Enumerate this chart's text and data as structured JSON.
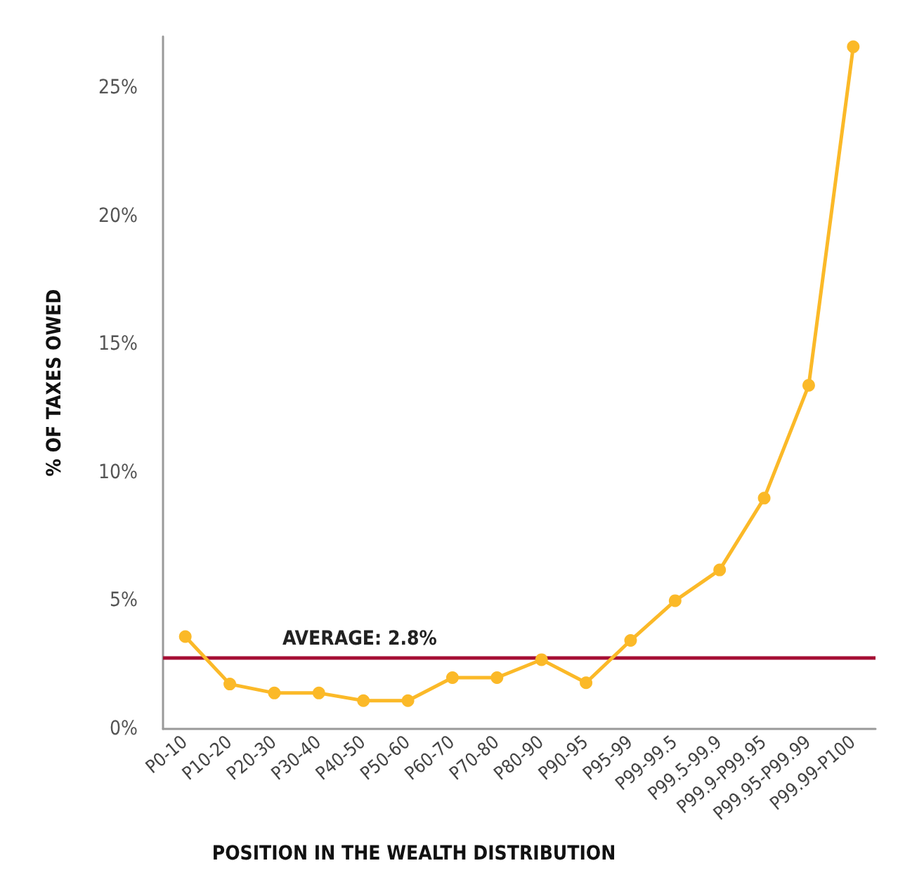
{
  "chart_data": {
    "type": "line",
    "xlabel": "POSITION IN THE WEALTH DISTRIBUTION",
    "ylabel": "% OF TAXES OWED",
    "categories": [
      "P0-10",
      "P10-20",
      "P20-30",
      "P30-40",
      "P40-50",
      "P50-60",
      "P60-70",
      "P70-80",
      "P80-90",
      "P90-95",
      "P95-99",
      "P99-99.5",
      "P99.5-99.9",
      "P99.9-P99.95",
      "P99.95-P99.99",
      "P99.99-P100"
    ],
    "series": [
      {
        "color": "#fbb928",
        "values": [
          3.6,
          1.75,
          1.4,
          1.4,
          1.1,
          1.1,
          2.0,
          2.0,
          2.7,
          1.8,
          3.45,
          5.0,
          6.2,
          9.0,
          13.4,
          26.6
        ]
      }
    ],
    "ylim": [
      0,
      27
    ],
    "yticks": [
      {
        "value": 0,
        "label": "0%"
      },
      {
        "value": 5,
        "label": "5%"
      },
      {
        "value": 10,
        "label": "10%"
      },
      {
        "value": 15,
        "label": "15%"
      },
      {
        "value": 20,
        "label": "20%"
      },
      {
        "value": 25,
        "label": "25%"
      }
    ],
    "ref_lines": [
      {
        "axis": "y",
        "value": 2.8,
        "label": "AVERAGE: 2.8%",
        "color": "#a50e34"
      }
    ],
    "grid": false,
    "marker": "circle",
    "line_style": "solid"
  }
}
